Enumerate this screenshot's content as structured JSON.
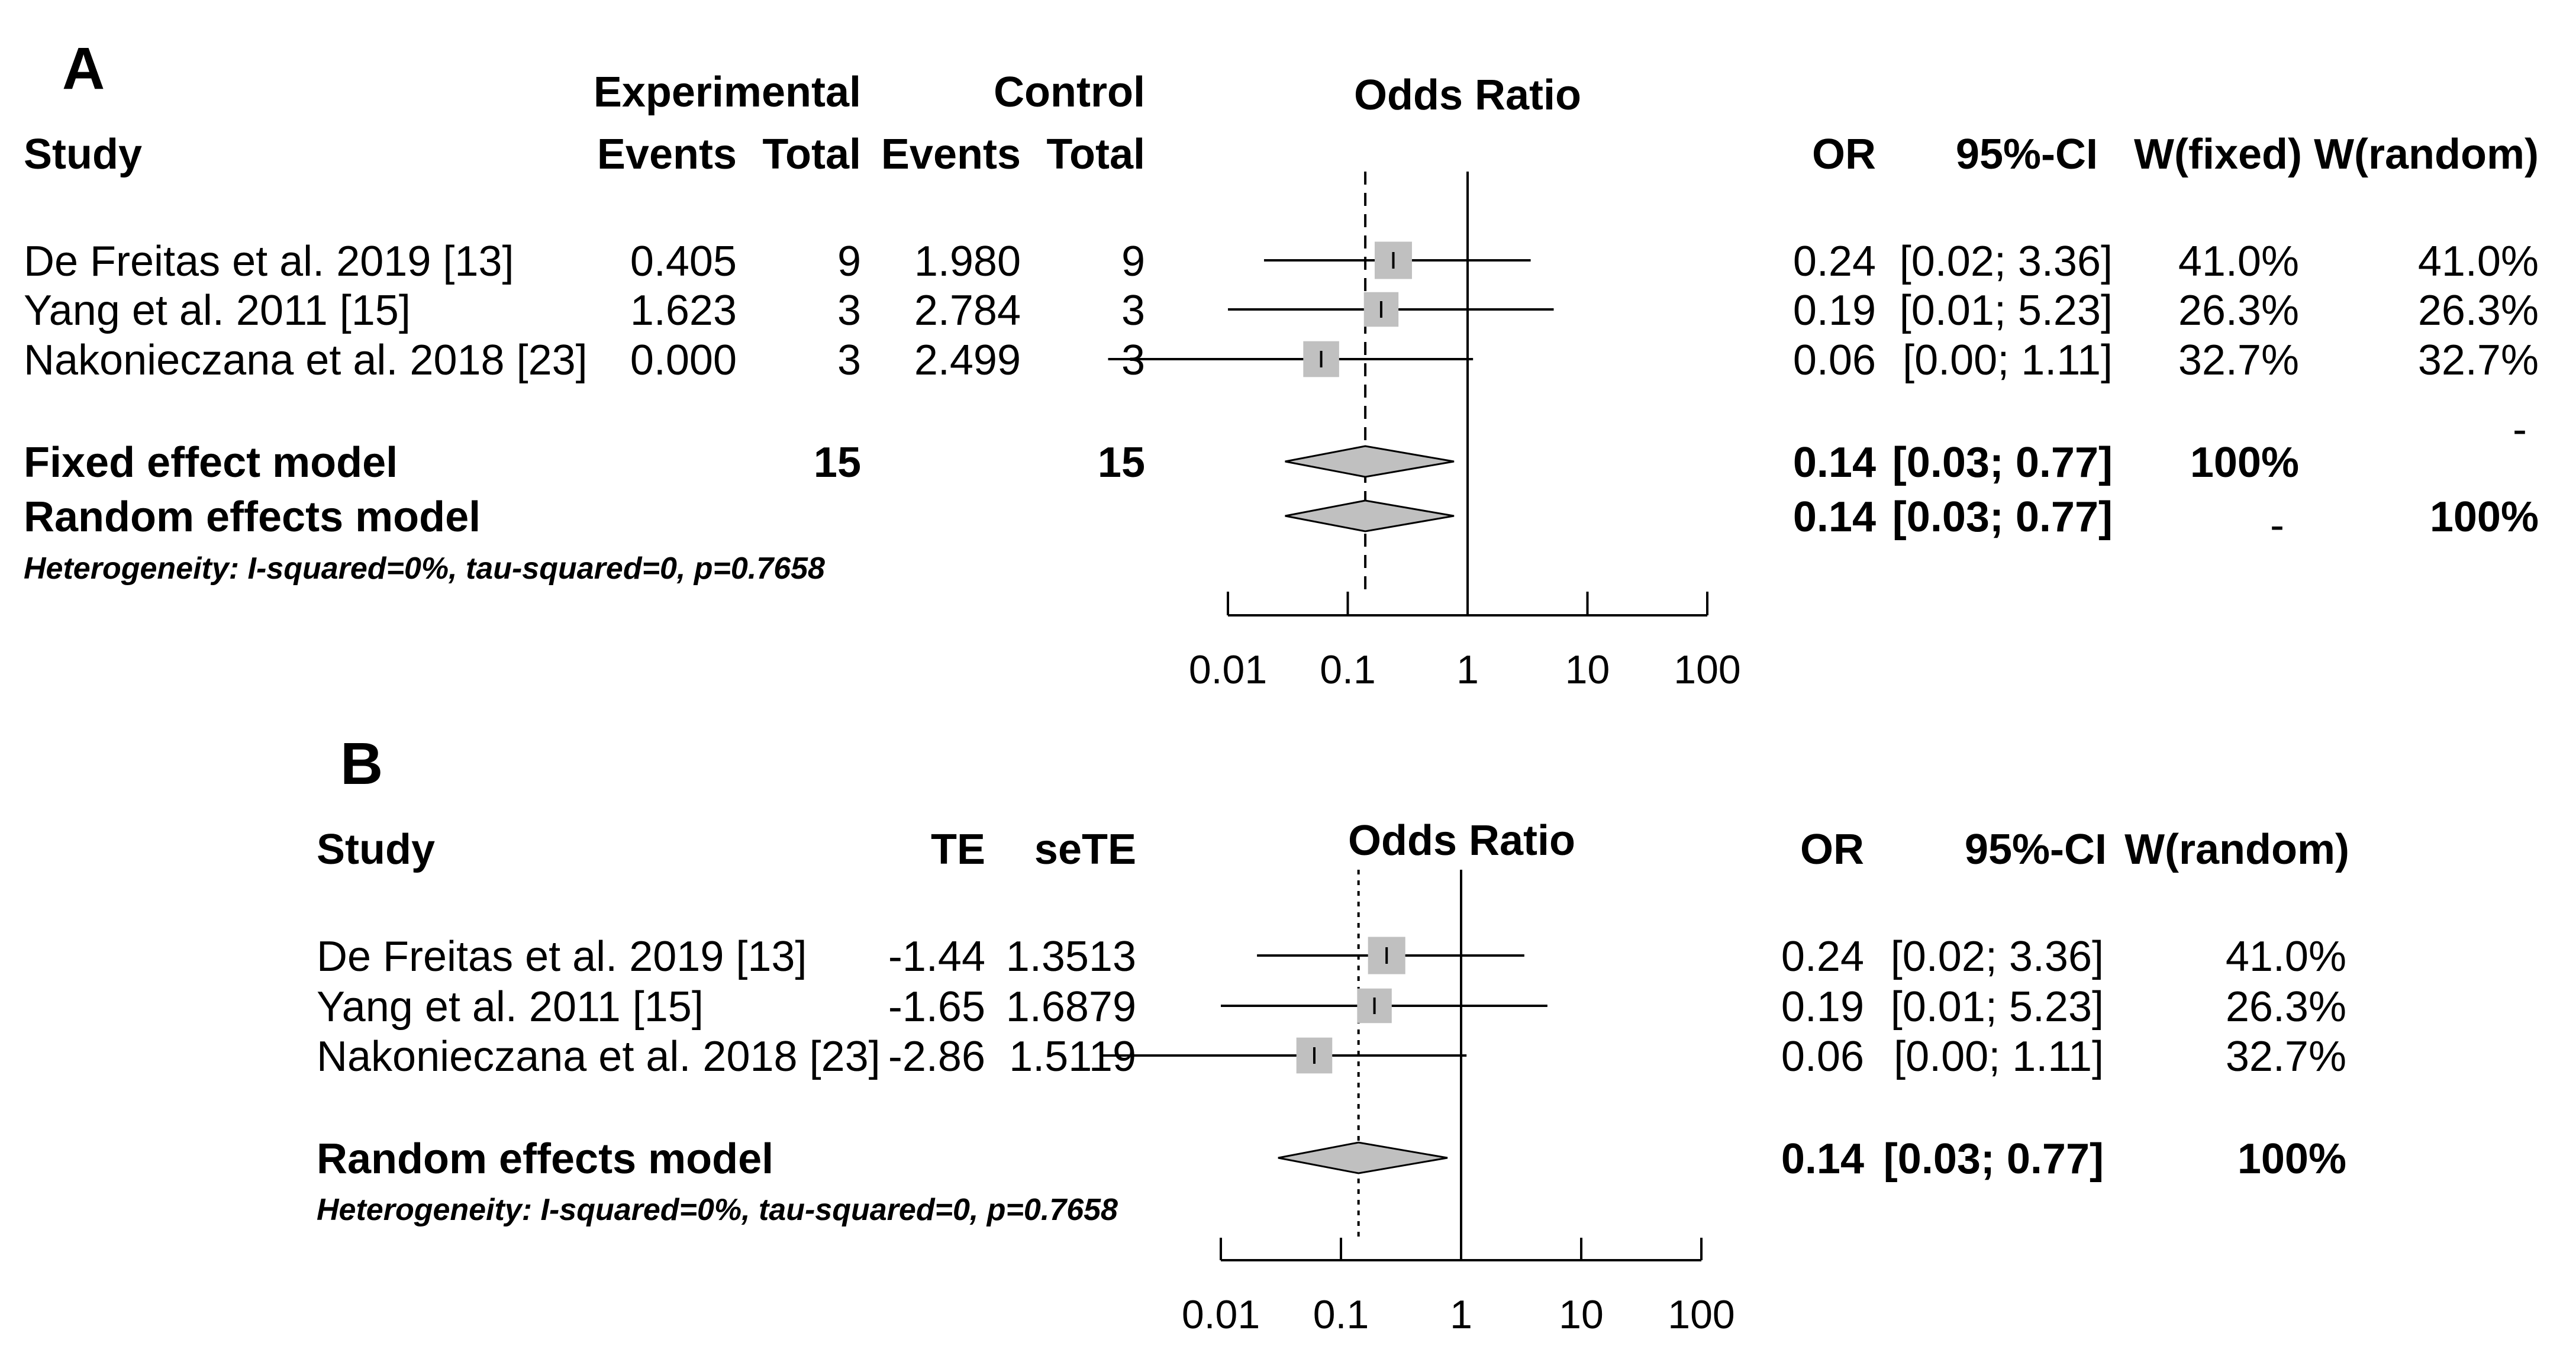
{
  "chart_data": [
    {
      "type": "forest",
      "panel": "A",
      "title": "Odds Ratio",
      "x_scale": "log",
      "xlim": [
        0.01,
        100
      ],
      "x_ticks": [
        "0.01",
        "0.1",
        "1",
        "10",
        "100"
      ],
      "reference_line": 1,
      "pooled_line": 0.14,
      "headers": {
        "group_top": [
          "Experimental",
          "Control"
        ],
        "study": "Study",
        "exp_events": "Events",
        "exp_total": "Total",
        "ctrl_events": "Events",
        "ctrl_total": "Total",
        "or": "OR",
        "ci": "95%-CI",
        "w_fixed": "W(fixed)",
        "w_random": "W(random)"
      },
      "studies": [
        {
          "study": "De Freitas et al. 2019 [13]",
          "exp_events": "0.405",
          "exp_total": "9",
          "ctrl_events": "1.980",
          "ctrl_total": "9",
          "or": 0.24,
          "ci_low": 0.02,
          "ci_high": 3.36,
          "or_text": "0.24",
          "ci_text": "[0.02; 3.36]",
          "w_fixed": "41.0%",
          "w_random": "41.0%",
          "weight": 41.0
        },
        {
          "study": "Yang et al. 2011 [15]",
          "exp_events": "1.623",
          "exp_total": "3",
          "ctrl_events": "2.784",
          "ctrl_total": "3",
          "or": 0.19,
          "ci_low": 0.01,
          "ci_high": 5.23,
          "or_text": "0.19",
          "ci_text": "[0.01; 5.23]",
          "w_fixed": "26.3%",
          "w_random": "26.3%",
          "weight": 26.3
        },
        {
          "study": "Nakonieczana et al. 2018 [23]",
          "exp_events": "0.000",
          "exp_total": "3",
          "ctrl_events": "2.499",
          "ctrl_total": "3",
          "or": 0.06,
          "ci_low": 0.0,
          "ci_high": 1.11,
          "or_text": "0.06",
          "ci_text": "[0.00; 1.11]",
          "w_fixed": "32.7%",
          "w_random": "32.7%",
          "weight": 32.7
        }
      ],
      "models": [
        {
          "label": "Fixed effect model",
          "exp_total": "15",
          "ctrl_total": "15",
          "or": 0.14,
          "ci_low": 0.03,
          "ci_high": 0.77,
          "or_text": "0.14",
          "ci_text": "[0.03; 0.77]",
          "w_fixed": "100%",
          "w_random": "-"
        },
        {
          "label": "Random effects model",
          "exp_total": "",
          "ctrl_total": "",
          "or": 0.14,
          "ci_low": 0.03,
          "ci_high": 0.77,
          "or_text": "0.14",
          "ci_text": "[0.03; 0.77]",
          "w_fixed": "-",
          "w_random": "100%"
        }
      ],
      "heterogeneity": "Heterogeneity: I-squared=0%, tau-squared=0, p=0.7658"
    },
    {
      "type": "forest",
      "panel": "B",
      "title": "Odds Ratio",
      "x_scale": "log",
      "xlim": [
        0.01,
        100
      ],
      "x_ticks": [
        "0.01",
        "0.1",
        "1",
        "10",
        "100"
      ],
      "reference_line": 1,
      "pooled_line": 0.14,
      "headers": {
        "study": "Study",
        "te": "TE",
        "sete": "seTE",
        "or": "OR",
        "ci": "95%-CI",
        "w_random": "W(random)"
      },
      "studies": [
        {
          "study": "De Freitas et al. 2019 [13]",
          "te": "-1.44",
          "sete": "1.3513",
          "or": 0.24,
          "ci_low": 0.02,
          "ci_high": 3.36,
          "or_text": "0.24",
          "ci_text": "[0.02; 3.36]",
          "w_random": "41.0%",
          "weight": 41.0
        },
        {
          "study": "Yang et al. 2011 [15]",
          "te": "-1.65",
          "sete": "1.6879",
          "or": 0.19,
          "ci_low": 0.01,
          "ci_high": 5.23,
          "or_text": "0.19",
          "ci_text": "[0.01; 5.23]",
          "w_random": "26.3%",
          "weight": 26.3
        },
        {
          "study": "Nakonieczana et al. 2018 [23]",
          "te": "-2.86",
          "sete": "1.5119",
          "or": 0.06,
          "ci_low": 0.0,
          "ci_high": 1.11,
          "or_text": "0.06",
          "ci_text": "[0.00; 1.11]",
          "w_random": "32.7%",
          "weight": 32.7
        }
      ],
      "models": [
        {
          "label": "Random effects model",
          "or": 0.14,
          "ci_low": 0.03,
          "ci_high": 0.77,
          "or_text": "0.14",
          "ci_text": "[0.03; 0.77]",
          "w_random": "100%"
        }
      ],
      "heterogeneity": "Heterogeneity: I-squared=0%, tau-squared=0, p=0.7658"
    }
  ]
}
